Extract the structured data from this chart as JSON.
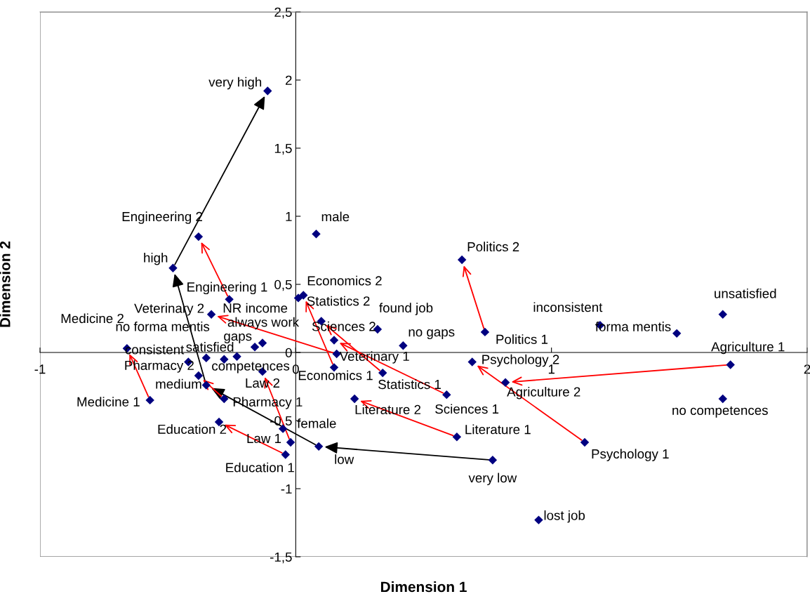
{
  "chart_data": {
    "type": "scatter",
    "xlabel": "Dimension 1",
    "ylabel": "Dimension 2",
    "xlim": [
      -1,
      2
    ],
    "ylim": [
      -1.5,
      2.5
    ],
    "xticks": [
      {
        "value": -1,
        "label": "-1"
      },
      {
        "value": 0,
        "label": "0"
      },
      {
        "value": 1,
        "label": "1"
      },
      {
        "value": 2,
        "label": "2"
      }
    ],
    "yticks": [
      {
        "value": -1.5,
        "label": "-1,5"
      },
      {
        "value": -1,
        "label": "-1"
      },
      {
        "value": -0.5,
        "label": "-0,5"
      },
      {
        "value": 0,
        "label": "0"
      },
      {
        "value": 0.5,
        "label": "0,5"
      },
      {
        "value": 1,
        "label": "1"
      },
      {
        "value": 1.5,
        "label": "1,5"
      },
      {
        "value": 2,
        "label": "2"
      },
      {
        "value": 2.5,
        "label": "2,5"
      }
    ],
    "grid": false,
    "legend": false,
    "marker": "diamond",
    "series": [
      {
        "color": "#000080",
        "x": [
          -0.11,
          -0.48,
          -0.35,
          0.09,
          0.77,
          -0.38,
          -0.26,
          -0.33,
          0.16,
          -0.66,
          -0.57,
          -0.38,
          -0.28,
          -0.3,
          -0.04,
          -0.13,
          -0.02,
          -0.05,
          -0.42,
          -0.35,
          -0.28,
          -0.23,
          -0.16,
          -0.13,
          0.01,
          0.03,
          0.1,
          0.15,
          0.15,
          0.34,
          0.59,
          0.23,
          0.63,
          0.08,
          0.32,
          0.42,
          0.65,
          0.74,
          0.69,
          1.13,
          0.82,
          1.7,
          1.19,
          1.49,
          1.67,
          1.67,
          0.95
        ],
        "values": [
          1.92,
          0.62,
          -0.24,
          -0.69,
          -0.79,
          0.85,
          0.39,
          0.28,
          -0.01,
          0.03,
          -0.35,
          -0.17,
          -0.34,
          -0.51,
          -0.75,
          -0.14,
          -0.66,
          -0.56,
          -0.07,
          -0.04,
          -0.05,
          -0.03,
          0.04,
          0.07,
          0.4,
          0.42,
          0.23,
          0.09,
          -0.11,
          -0.15,
          -0.31,
          -0.34,
          -0.62,
          0.87,
          0.17,
          0.05,
          0.68,
          0.15,
          -0.07,
          -0.66,
          -0.22,
          -0.09,
          0.2,
          0.14,
          0.28,
          -0.34,
          -1.23
        ]
      }
    ],
    "annotations": [
      {
        "text": "very high",
        "x": -0.11,
        "y": 1.92
      },
      {
        "text": "high",
        "x": -0.48,
        "y": 0.62
      },
      {
        "text": "medium",
        "x": -0.35,
        "y": -0.24
      },
      {
        "text": "low",
        "x": 0.09,
        "y": -0.69
      },
      {
        "text": "very low",
        "x": 0.77,
        "y": -0.79
      },
      {
        "text": "Engineering 2",
        "x": -0.38,
        "y": 0.85
      },
      {
        "text": "Engineering 1",
        "x": -0.26,
        "y": 0.39
      },
      {
        "text": "Veterinary 2",
        "x": -0.33,
        "y": 0.28
      },
      {
        "text": "Veterinary 1",
        "x": 0.16,
        "y": -0.01
      },
      {
        "text": "Medicine 2",
        "x": -0.66,
        "y": 0.03
      },
      {
        "text": "Medicine 1",
        "x": -0.57,
        "y": -0.35
      },
      {
        "text": "Pharmacy 2",
        "x": -0.38,
        "y": -0.17
      },
      {
        "text": "Pharmacy 1",
        "x": -0.28,
        "y": -0.34
      },
      {
        "text": "Education 2",
        "x": -0.3,
        "y": -0.51
      },
      {
        "text": "Education 1",
        "x": -0.04,
        "y": -0.75
      },
      {
        "text": "Law 2",
        "x": -0.13,
        "y": -0.14
      },
      {
        "text": "Law 1",
        "x": -0.02,
        "y": -0.66
      },
      {
        "text": "female",
        "x": -0.05,
        "y": -0.56
      },
      {
        "text": "consistent",
        "x": -0.42,
        "y": -0.07
      },
      {
        "text": "no forma mentis",
        "x": -0.35,
        "y": -0.04
      },
      {
        "text": "competences",
        "x": -0.28,
        "y": -0.05
      },
      {
        "text": "satisfied",
        "x": -0.23,
        "y": -0.03
      },
      {
        "text": "gaps",
        "x": -0.16,
        "y": 0.04
      },
      {
        "text": "always work",
        "x": -0.13,
        "y": 0.07
      },
      {
        "text": "NR income",
        "x": 0.01,
        "y": 0.4
      },
      {
        "text": "Economics 2",
        "x": 0.03,
        "y": 0.42
      },
      {
        "text": "Statistics 2",
        "x": 0.1,
        "y": 0.23
      },
      {
        "text": "Sciences 2",
        "x": 0.15,
        "y": 0.09
      },
      {
        "text": "Economics 1",
        "x": 0.15,
        "y": -0.11
      },
      {
        "text": "Statistics 1",
        "x": 0.34,
        "y": -0.15
      },
      {
        "text": "Sciences 1",
        "x": 0.59,
        "y": -0.31
      },
      {
        "text": "Literature 2",
        "x": 0.23,
        "y": -0.34
      },
      {
        "text": "Literature 1",
        "x": 0.63,
        "y": -0.62
      },
      {
        "text": "male",
        "x": 0.08,
        "y": 0.87
      },
      {
        "text": "found job",
        "x": 0.32,
        "y": 0.17
      },
      {
        "text": "no gaps",
        "x": 0.42,
        "y": 0.05
      },
      {
        "text": "Politics 2",
        "x": 0.65,
        "y": 0.68
      },
      {
        "text": "Politics 1",
        "x": 0.74,
        "y": 0.15
      },
      {
        "text": "Psychology 2",
        "x": 0.69,
        "y": -0.07
      },
      {
        "text": "Psychology 1",
        "x": 1.13,
        "y": -0.66
      },
      {
        "text": "Agriculture 2",
        "x": 0.82,
        "y": -0.22
      },
      {
        "text": "Agriculture 1",
        "x": 1.7,
        "y": -0.09
      },
      {
        "text": "inconsistent",
        "x": 1.19,
        "y": 0.2
      },
      {
        "text": "forma mentis",
        "x": 1.49,
        "y": 0.14
      },
      {
        "text": "unsatisfied",
        "x": 1.67,
        "y": 0.28
      },
      {
        "text": "no competences",
        "x": 1.67,
        "y": -0.34
      },
      {
        "text": "lost job",
        "x": 0.95,
        "y": -1.23
      }
    ]
  }
}
